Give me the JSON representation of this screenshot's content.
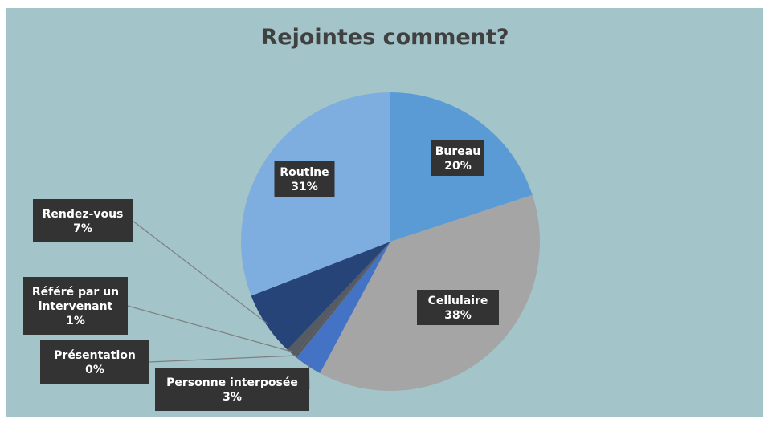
{
  "chart_data": {
    "type": "pie",
    "title": "Rejointes comment?",
    "slices": [
      {
        "label": "Bureau",
        "value": 20,
        "display": "20%",
        "color": "#5b9bd5"
      },
      {
        "label": "Cellulaire",
        "value": 38,
        "display": "38%",
        "color": "#a5a5a5"
      },
      {
        "label": "Personne interposée",
        "value": 3,
        "display": "3%",
        "color": "#4472c4"
      },
      {
        "label": "Présentation",
        "value": 0.3,
        "display": "0%",
        "color": "#595959"
      },
      {
        "label": "Référé par un intervenant",
        "value": 1,
        "display": "1%",
        "color": "#555a63"
      },
      {
        "label": "Rendez-vous",
        "value": 7,
        "display": "7%",
        "color": "#264478"
      },
      {
        "label": "Routine",
        "value": 31,
        "display": "31%",
        "color": "#7eaddf"
      }
    ],
    "start_angle": "top",
    "direction": "clockwise",
    "label_background": "#333333",
    "leader_line_color": "#7f7f7f",
    "background": "#a3c4c9"
  }
}
